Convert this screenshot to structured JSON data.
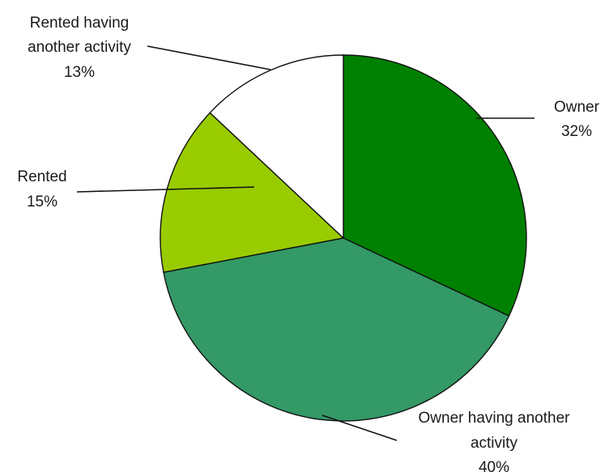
{
  "chart_data": {
    "type": "pie",
    "title": "",
    "start_angle_deg": 0,
    "direction": "clockwise",
    "slices": [
      {
        "label": "Owner",
        "percent_label": "32%",
        "value": 32,
        "color": "#008000"
      },
      {
        "label": "Owner having another activity",
        "percent_label": "40%",
        "value": 40,
        "color": "#339966"
      },
      {
        "label": "Rented",
        "percent_label": "15%",
        "value": 15,
        "color": "#99cc00"
      },
      {
        "label": "Rented having another activity",
        "percent_label": "13%",
        "value": 13,
        "color": "#ffffff"
      }
    ],
    "legend": "none"
  }
}
